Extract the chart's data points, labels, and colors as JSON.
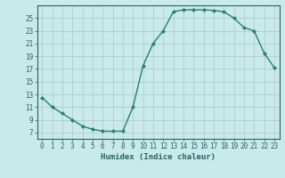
{
  "x": [
    0,
    1,
    2,
    3,
    4,
    5,
    6,
    7,
    8,
    9,
    10,
    11,
    12,
    13,
    14,
    15,
    16,
    17,
    18,
    19,
    20,
    21,
    22,
    23
  ],
  "y": [
    12.5,
    11.0,
    10.0,
    9.0,
    8.0,
    7.5,
    7.2,
    7.2,
    7.2,
    11.0,
    17.5,
    21.0,
    23.0,
    26.0,
    26.3,
    26.3,
    26.3,
    26.2,
    26.0,
    25.0,
    23.5,
    23.0,
    19.5,
    17.2
  ],
  "line_color": "#2e7d6e",
  "marker": "D",
  "marker_size": 2.0,
  "linewidth": 1.0,
  "bg_color": "#c8eaea",
  "grid_color_major": "#b0c8c8",
  "grid_color_minor": "#d8e8e8",
  "xlabel": "Humidex (Indice chaleur)",
  "xlim": [
    -0.5,
    23.5
  ],
  "ylim": [
    6,
    27
  ],
  "yticks": [
    7,
    9,
    11,
    13,
    15,
    17,
    19,
    21,
    23,
    25
  ],
  "xlabel_fontsize": 6.5,
  "tick_fontsize": 5.5
}
